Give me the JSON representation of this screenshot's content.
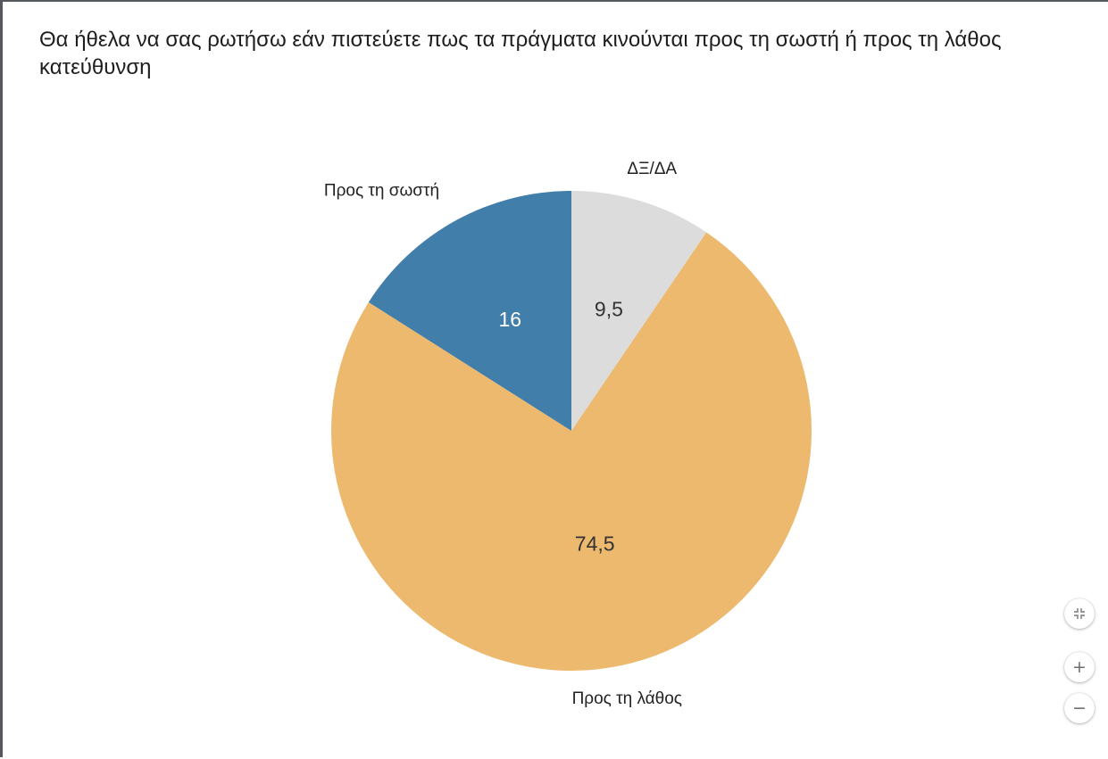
{
  "colors": {
    "background": "#ffffff",
    "text": "#1e1e1e",
    "wrong": "#ecb96f",
    "right": "#417eaa",
    "dk": "#dcdcdc"
  },
  "controls": {
    "fit_icon": "compress-arrows-icon",
    "zoom_in_label": "+",
    "zoom_out_label": "−"
  },
  "chart_data": {
    "type": "pie",
    "title": "Θα ήθελα να σας ρωτήσω εάν πιστεύετε πως τα πράγματα κινούνται προς τη σωστή ή προς τη λάθος κατεύθυνση",
    "start": "12 o'clock, clockwise",
    "slices": [
      {
        "label": "ΔΞ/ΔΑ",
        "value": 9.5,
        "value_label": "9,5",
        "color": "#dcdcdc",
        "text_color": "#333333"
      },
      {
        "label": "Προς τη λάθος",
        "value": 74.5,
        "value_label": "74,5",
        "color": "#ecb96f",
        "text_color": "#333333"
      },
      {
        "label": "Προς τη σωστή",
        "value": 16,
        "value_label": "16",
        "color": "#417eaa",
        "text_color": "#ffffff"
      }
    ]
  }
}
